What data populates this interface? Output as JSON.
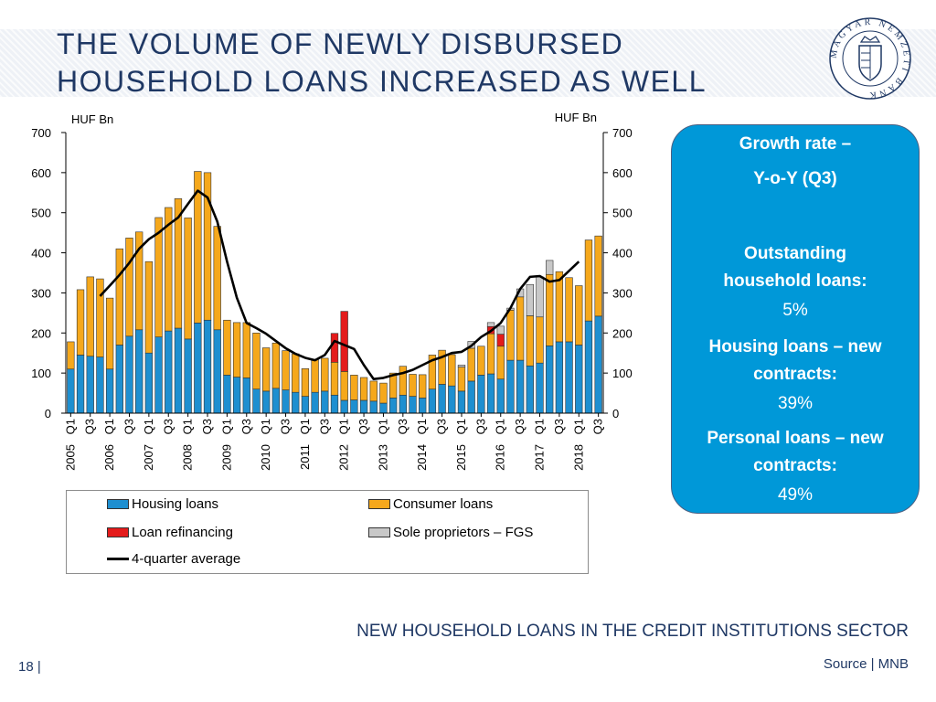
{
  "slide": {
    "title_line1": "THE VOLUME OF NEWLY DISBURSED",
    "title_line2": "HOUSEHOLD LOANS INCREASED AS WELL",
    "seal_text": "MAGYAR NEMZETI BANK",
    "footer_title": "NEW HOUSEHOLD LOANS IN THE CREDIT INSTITUTIONS SECTOR",
    "page_number": "18 |",
    "source": "Source | MNB"
  },
  "colors": {
    "housing": "#1e8fd0",
    "consumer": "#f5a81c",
    "refinancing": "#e41b1b",
    "sole": "#c8c8c8",
    "average": "#000000",
    "title": "#1f3864",
    "box": "#0098d8"
  },
  "info_box": {
    "heading_line1": "Growth rate –",
    "heading_line2": "Y-o-Y (Q3)",
    "items": [
      {
        "label_line1": "Outstanding",
        "label_line2": "household loans:",
        "value": "5%"
      },
      {
        "label_line1": "Housing loans – new",
        "label_line2": "contracts:",
        "value": "39%"
      },
      {
        "label_line1": "Personal loans – new",
        "label_line2": "contracts:",
        "value": "49%"
      }
    ]
  },
  "chart_data": {
    "type": "bar",
    "stacked": true,
    "ylabel_left": "HUF Bn",
    "ylabel_right": "HUF Bn",
    "ylim": [
      0,
      700
    ],
    "yticks": [
      0,
      100,
      200,
      300,
      400,
      500,
      600,
      700
    ],
    "years": [
      "2005",
      "2006",
      "2007",
      "2008",
      "2009",
      "2010",
      "2011",
      "2012",
      "2013",
      "2014",
      "2015",
      "2016",
      "2017",
      "2018"
    ],
    "quarter_labels": [
      "Q1",
      "Q3"
    ],
    "categories": [
      "2005 Q1",
      "2005 Q2",
      "2005 Q3",
      "2005 Q4",
      "2006 Q1",
      "2006 Q2",
      "2006 Q3",
      "2006 Q4",
      "2007 Q1",
      "2007 Q2",
      "2007 Q3",
      "2007 Q4",
      "2008 Q1",
      "2008 Q2",
      "2008 Q3",
      "2008 Q4",
      "2009 Q1",
      "2009 Q2",
      "2009 Q3",
      "2009 Q4",
      "2010 Q1",
      "2010 Q2",
      "2010 Q3",
      "2010 Q4",
      "2011 Q1",
      "2011 Q2",
      "2011 Q3",
      "2011 Q4",
      "2012 Q1",
      "2012 Q2",
      "2012 Q3",
      "2012 Q4",
      "2013 Q1",
      "2013 Q2",
      "2013 Q3",
      "2013 Q4",
      "2014 Q1",
      "2014 Q2",
      "2014 Q3",
      "2014 Q4",
      "2015 Q1",
      "2015 Q2",
      "2015 Q3",
      "2015 Q4",
      "2016 Q1",
      "2016 Q2",
      "2016 Q3",
      "2016 Q4",
      "2017 Q1",
      "2017 Q2",
      "2017 Q3",
      "2017 Q4",
      "2018 Q1",
      "2018 Q2",
      "2018 Q3"
    ],
    "series": [
      {
        "name": "Housing loans",
        "key": "housing",
        "values": [
          110,
          145,
          142,
          140,
          110,
          170,
          192,
          208,
          150,
          190,
          205,
          212,
          185,
          225,
          232,
          208,
          95,
          90,
          88,
          60,
          55,
          62,
          58,
          52,
          42,
          52,
          55,
          45,
          32,
          33,
          32,
          30,
          25,
          38,
          45,
          42,
          38,
          60,
          72,
          68,
          55,
          80,
          95,
          98,
          85,
          132,
          132,
          118,
          125,
          168,
          178,
          178,
          170,
          230,
          242
        ]
      },
      {
        "name": "Consumer loans",
        "key": "consumer",
        "values": [
          68,
          163,
          198,
          195,
          177,
          240,
          245,
          244,
          228,
          298,
          308,
          323,
          302,
          378,
          368,
          258,
          137,
          136,
          138,
          140,
          108,
          113,
          98,
          96,
          69,
          82,
          82,
          82,
          72,
          62,
          57,
          50,
          50,
          62,
          72,
          55,
          58,
          85,
          85,
          78,
          60,
          82,
          72,
          100,
          82,
          125,
          158,
          125,
          115,
          178,
          175,
          160,
          148,
          202,
          200
        ]
      },
      {
        "name": "Loan refinancing",
        "key": "refinancing",
        "values": [
          0,
          0,
          0,
          0,
          0,
          0,
          0,
          0,
          0,
          0,
          0,
          0,
          0,
          0,
          0,
          0,
          0,
          0,
          0,
          0,
          0,
          0,
          0,
          0,
          0,
          0,
          0,
          72,
          150,
          0,
          0,
          0,
          0,
          0,
          0,
          0,
          0,
          0,
          0,
          0,
          0,
          0,
          0,
          18,
          30,
          0,
          0,
          0,
          0,
          0,
          0,
          0,
          0,
          0,
          0
        ]
      },
      {
        "name": "Sole proprietors – FGS",
        "key": "sole",
        "values": [
          0,
          0,
          0,
          0,
          0,
          0,
          0,
          0,
          0,
          0,
          0,
          0,
          0,
          0,
          0,
          0,
          0,
          0,
          0,
          0,
          0,
          0,
          0,
          0,
          0,
          0,
          0,
          0,
          0,
          0,
          0,
          0,
          0,
          0,
          0,
          0,
          0,
          0,
          0,
          0,
          5,
          17,
          0,
          10,
          20,
          5,
          20,
          78,
          100,
          35,
          0,
          0,
          0,
          0,
          0
        ]
      },
      {
        "name": "4-quarter average",
        "key": "average",
        "type": "line",
        "values": [
          null,
          null,
          null,
          292,
          318,
          345,
          375,
          410,
          434,
          450,
          470,
          488,
          522,
          555,
          538,
          478,
          378,
          288,
          225,
          212,
          198,
          180,
          162,
          148,
          138,
          132,
          145,
          180,
          170,
          160,
          120,
          85,
          88,
          95,
          100,
          108,
          120,
          132,
          140,
          150,
          153,
          168,
          190,
          205,
          225,
          262,
          310,
          340,
          342,
          328,
          332,
          355,
          378,
          null,
          null
        ]
      }
    ],
    "legend": {
      "position": "bottom",
      "items": [
        "Housing loans",
        "Consumer loans",
        "Loan refinancing",
        "Sole proprietors – FGS",
        "4-quarter average"
      ]
    },
    "grid": false
  }
}
